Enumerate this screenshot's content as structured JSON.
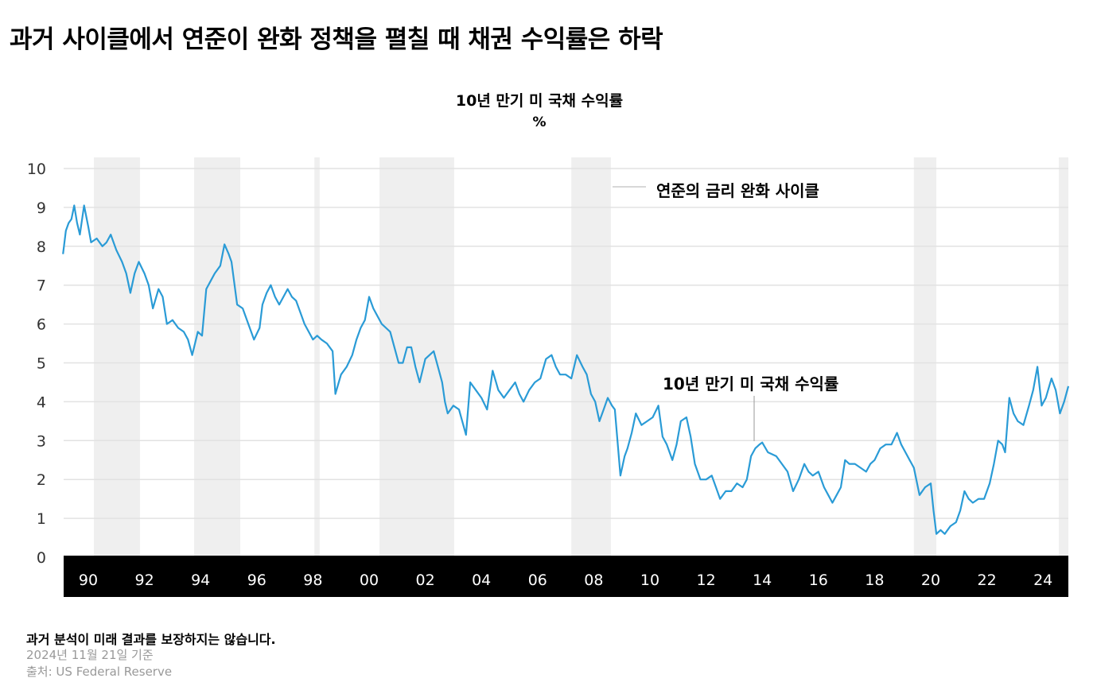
{
  "title": "과거 사이클에서 연준이 완화 정책을 펼칠 때 채권 수익률은 하락",
  "footer": {
    "disclaimer": "과거 분석이 미래 결과를 보장하지는 않습니다.",
    "as_of": "2024년 11월 21일 기준",
    "source": "출처: US Federal Reserve"
  },
  "chart_data": {
    "type": "line",
    "title": "10년 만기 미 국채 수익률",
    "ylabel": "%",
    "ylim": [
      0,
      10
    ],
    "yticks": [
      0,
      1,
      2,
      3,
      4,
      5,
      6,
      7,
      8,
      9,
      10
    ],
    "xlim": [
      1989.1,
      2024.9
    ],
    "xticks": [
      {
        "year": 1990,
        "label": "90"
      },
      {
        "year": 1992,
        "label": "92"
      },
      {
        "year": 1994,
        "label": "94"
      },
      {
        "year": 1996,
        "label": "96"
      },
      {
        "year": 1998,
        "label": "98"
      },
      {
        "year": 2000,
        "label": "00"
      },
      {
        "year": 2002,
        "label": "02"
      },
      {
        "year": 2004,
        "label": "04"
      },
      {
        "year": 2006,
        "label": "06"
      },
      {
        "year": 2008,
        "label": "08"
      },
      {
        "year": 2010,
        "label": "10"
      },
      {
        "year": 2012,
        "label": "12"
      },
      {
        "year": 2014,
        "label": "14"
      },
      {
        "year": 2016,
        "label": "16"
      },
      {
        "year": 2018,
        "label": "18"
      },
      {
        "year": 2020,
        "label": "20"
      },
      {
        "year": 2022,
        "label": "22"
      },
      {
        "year": 2024,
        "label": "24"
      }
    ],
    "grid": true,
    "colors": {
      "line": "#2a9bd6",
      "band": "#efefef",
      "grid": "#e2e2e2",
      "axis_bar": "#000000"
    },
    "easing_cycles_label": "연준의 금리 완화 사이클",
    "series_label": "10년 만기 미 국채 수익률",
    "easing_cycles": [
      [
        1990.2,
        1991.84
      ],
      [
        1993.77,
        1995.41
      ],
      [
        1998.05,
        1998.24
      ],
      [
        2000.37,
        2003.03
      ],
      [
        2007.2,
        2008.61
      ],
      [
        2019.4,
        2020.2
      ],
      [
        2024.56,
        2024.9
      ]
    ],
    "series": [
      {
        "x": [
          1989.1,
          1989.2,
          1989.3,
          1989.4,
          1989.5,
          1989.6,
          1989.7,
          1989.85,
          1990.0,
          1990.1,
          1990.3,
          1990.5,
          1990.65,
          1990.8,
          1991.0,
          1991.2,
          1991.35,
          1991.5,
          1991.65,
          1991.8,
          1992.0,
          1992.15,
          1992.3,
          1992.5,
          1992.65,
          1992.8,
          1993.0,
          1993.2,
          1993.4,
          1993.55,
          1993.7,
          1993.9,
          1994.05,
          1994.2,
          1994.35,
          1994.5,
          1994.7,
          1994.85,
          1995.0,
          1995.1,
          1995.3,
          1995.5,
          1995.7,
          1995.9,
          1996.1,
          1996.2,
          1996.35,
          1996.5,
          1996.65,
          1996.8,
          1997.1,
          1997.25,
          1997.4,
          1997.55,
          1997.7,
          1997.85,
          1998.0,
          1998.15,
          1998.3,
          1998.5,
          1998.7,
          1998.8,
          1999.0,
          1999.2,
          1999.4,
          1999.55,
          1999.7,
          1999.85,
          2000.0,
          2000.15,
          2000.3,
          2000.45,
          2000.6,
          2000.75,
          2000.9,
          2001.05,
          2001.2,
          2001.35,
          2001.5,
          2001.65,
          2001.8,
          2002.0,
          2002.15,
          2002.3,
          2002.45,
          2002.6,
          2002.7,
          2002.8,
          2003.0,
          2003.2,
          2003.45,
          2003.6,
          2003.8,
          2004.0,
          2004.2,
          2004.4,
          2004.6,
          2004.8,
          2005.0,
          2005.2,
          2005.35,
          2005.5,
          2005.7,
          2005.9,
          2006.1,
          2006.3,
          2006.5,
          2006.65,
          2006.8,
          2007.0,
          2007.2,
          2007.4,
          2007.6,
          2007.75,
          2007.9,
          2008.05,
          2008.2,
          2008.35,
          2008.5,
          2008.65,
          2008.75,
          2008.95,
          2009.1,
          2009.2,
          2009.35,
          2009.5,
          2009.7,
          2009.9,
          2010.1,
          2010.3,
          2010.45,
          2010.6,
          2010.8,
          2010.95,
          2011.1,
          2011.3,
          2011.45,
          2011.6,
          2011.8,
          2012.0,
          2012.2,
          2012.35,
          2012.5,
          2012.7,
          2012.9,
          2013.1,
          2013.3,
          2013.45,
          2013.6,
          2013.75,
          2013.9,
          2014.0,
          2014.2,
          2014.5,
          2014.7,
          2014.9,
          2015.1,
          2015.3,
          2015.5,
          2015.65,
          2015.8,
          2016.0,
          2016.2,
          2016.35,
          2016.5,
          2016.65,
          2016.8,
          2016.95,
          2017.1,
          2017.3,
          2017.5,
          2017.7,
          2017.85,
          2018.0,
          2018.2,
          2018.4,
          2018.6,
          2018.8,
          2018.95,
          2019.1,
          2019.25,
          2019.4,
          2019.6,
          2019.8,
          2020.0,
          2020.1,
          2020.2,
          2020.35,
          2020.5,
          2020.7,
          2020.9,
          2021.05,
          2021.2,
          2021.35,
          2021.5,
          2021.7,
          2021.9,
          2022.1,
          2022.25,
          2022.4,
          2022.55,
          2022.65,
          2022.8,
          2022.95,
          2023.1,
          2023.3,
          2023.5,
          2023.65,
          2023.8,
          2023.95,
          2024.1,
          2024.3,
          2024.45,
          2024.6,
          2024.75,
          2024.9
        ],
        "y": [
          7.8,
          8.4,
          8.6,
          8.7,
          9.05,
          8.6,
          8.3,
          9.05,
          8.5,
          8.1,
          8.2,
          8.0,
          8.1,
          8.3,
          7.9,
          7.6,
          7.3,
          6.8,
          7.3,
          7.6,
          7.3,
          7.0,
          6.4,
          6.9,
          6.7,
          6.0,
          6.1,
          5.9,
          5.8,
          5.6,
          5.2,
          5.8,
          5.7,
          6.9,
          7.1,
          7.3,
          7.5,
          8.05,
          7.8,
          7.6,
          6.5,
          6.4,
          6.0,
          5.6,
          5.9,
          6.5,
          6.8,
          7.0,
          6.7,
          6.5,
          6.9,
          6.7,
          6.6,
          6.3,
          6.0,
          5.8,
          5.6,
          5.7,
          5.6,
          5.5,
          5.3,
          4.2,
          4.7,
          4.9,
          5.2,
          5.6,
          5.9,
          6.1,
          6.7,
          6.4,
          6.2,
          6.0,
          5.9,
          5.8,
          5.4,
          5.0,
          5.0,
          5.4,
          5.4,
          4.9,
          4.5,
          5.1,
          5.2,
          5.3,
          4.9,
          4.5,
          4.0,
          3.7,
          3.9,
          3.8,
          3.15,
          4.5,
          4.3,
          4.1,
          3.8,
          4.8,
          4.3,
          4.1,
          4.3,
          4.5,
          4.2,
          4.0,
          4.3,
          4.5,
          4.6,
          5.1,
          5.2,
          4.9,
          4.7,
          4.7,
          4.6,
          5.2,
          4.9,
          4.7,
          4.2,
          4.0,
          3.5,
          3.8,
          4.1,
          3.9,
          3.8,
          2.1,
          2.6,
          2.8,
          3.2,
          3.7,
          3.4,
          3.5,
          3.6,
          3.9,
          3.1,
          2.9,
          2.5,
          2.9,
          3.5,
          3.6,
          3.1,
          2.4,
          2.0,
          2.0,
          2.1,
          1.8,
          1.5,
          1.7,
          1.7,
          1.9,
          1.8,
          2.0,
          2.6,
          2.8,
          2.9,
          2.95,
          2.7,
          2.6,
          2.4,
          2.2,
          1.7,
          2.0,
          2.4,
          2.2,
          2.1,
          2.2,
          1.8,
          1.6,
          1.4,
          1.6,
          1.8,
          2.5,
          2.4,
          2.4,
          2.3,
          2.2,
          2.4,
          2.5,
          2.8,
          2.9,
          2.9,
          3.2,
          2.9,
          2.7,
          2.5,
          2.3,
          1.6,
          1.8,
          1.9,
          1.2,
          0.6,
          0.7,
          0.6,
          0.8,
          0.9,
          1.2,
          1.7,
          1.5,
          1.4,
          1.5,
          1.5,
          1.9,
          2.4,
          3.0,
          2.9,
          2.7,
          4.1,
          3.7,
          3.5,
          3.4,
          3.9,
          4.3,
          4.9,
          3.9,
          4.1,
          4.6,
          4.3,
          3.7,
          4.0,
          4.4
        ]
      }
    ]
  }
}
